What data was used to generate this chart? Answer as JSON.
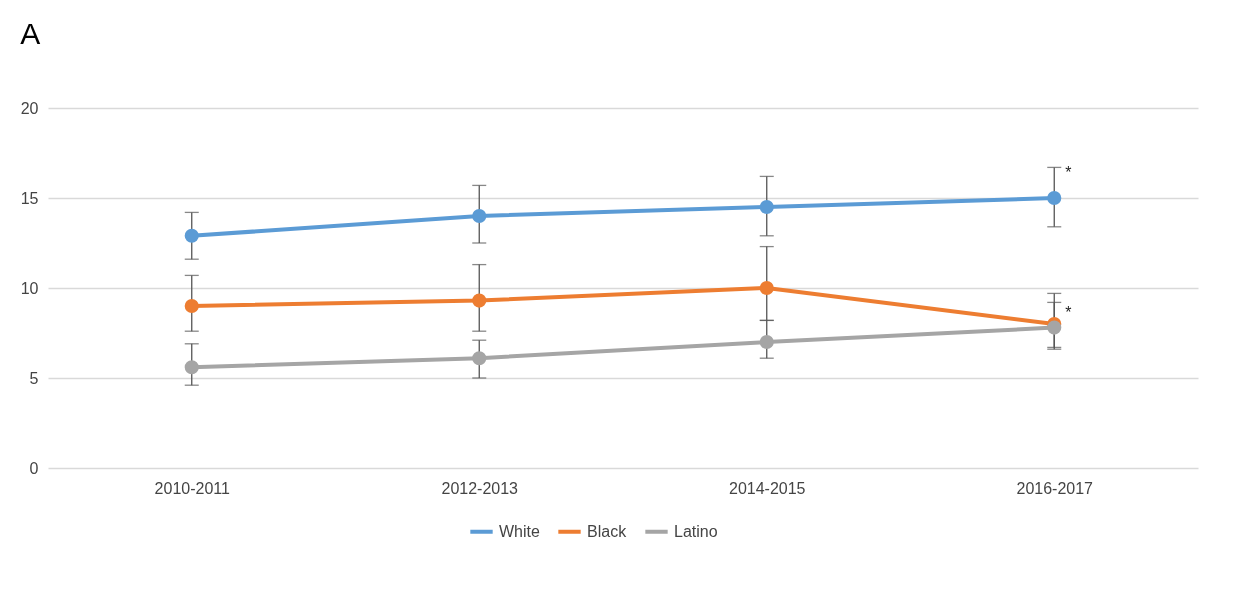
{
  "chart_data": {
    "type": "line",
    "title": "A",
    "categories": [
      "2010-2011",
      "2012-2013",
      "2014-2015",
      "2016-2017"
    ],
    "series": [
      {
        "name": "White",
        "color": "#5b9bd5",
        "values": [
          12.9,
          14.0,
          14.5,
          15.0
        ],
        "errors": [
          [
            11.6,
            14.2
          ],
          [
            12.5,
            15.7
          ],
          [
            12.9,
            16.2
          ],
          [
            13.4,
            16.7
          ]
        ]
      },
      {
        "name": "Black",
        "color": "#ed7d31",
        "values": [
          9.0,
          9.3,
          10.0,
          8.0
        ],
        "errors": [
          [
            7.6,
            10.7
          ],
          [
            7.6,
            11.3
          ],
          [
            8.2,
            12.3
          ],
          [
            6.7,
            9.7
          ]
        ]
      },
      {
        "name": "Latino",
        "color": "#a5a5a5",
        "values": [
          5.6,
          6.1,
          7.0,
          7.8
        ],
        "errors": [
          [
            4.6,
            6.9
          ],
          [
            5.0,
            7.1
          ],
          [
            6.1,
            8.2
          ],
          [
            6.6,
            9.2
          ]
        ]
      }
    ],
    "ylim": [
      0,
      20
    ],
    "yticks": [
      0,
      5,
      10,
      15,
      20
    ],
    "grid": "y",
    "legend": "bottom",
    "marker": "circle",
    "line_style": "solid",
    "annotations": [
      {
        "text": "*",
        "x": "2016-2017",
        "y": 16.4
      },
      {
        "text": "*",
        "x": "2016-2017",
        "y": 8.6
      }
    ]
  }
}
